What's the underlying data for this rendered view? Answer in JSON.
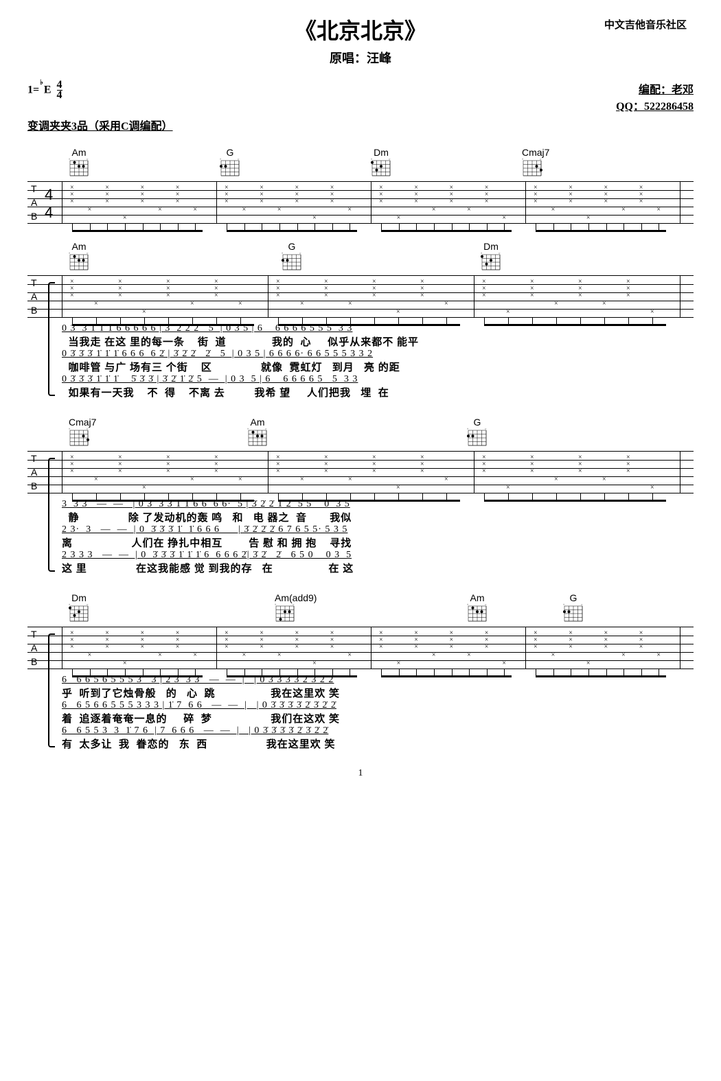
{
  "header": {
    "community": "中文吉他音乐社区",
    "title": "《北京北京》",
    "subtitle": "原唱：汪峰"
  },
  "meta": {
    "key": "1=",
    "key_note": "E",
    "time_sig": "4/4",
    "capo": "变调夹夹3品（采用C调编配）",
    "arranger": "编配：老邓",
    "qq": "QQ：522286458"
  },
  "chords": {
    "Am": "Am",
    "G": "G",
    "Dm": "Dm",
    "Cmaj7": "Cmaj7",
    "Amadd9": "Am(add9)"
  },
  "systems": [
    {
      "chords": [
        "Am",
        "G",
        "Dm",
        "Cmaj7"
      ],
      "chord_positions": [
        60,
        280,
        500,
        720
      ],
      "tab_label": {
        "T": "T",
        "A": "A",
        "B": "B",
        "time": "4"
      }
    },
    {
      "chords": [
        "Am",
        "G",
        "Dm"
      ],
      "chord_positions": [
        60,
        370,
        660
      ],
      "lyrics": [
        {
          "nums": "0 3̇  3̇ 1̇ 1̇ 1̇ 6 6 6 6 6 | 3̇  2̇ 2̇ 2̇   5  | 0 3 5 | 6    6 6 6 6 5 5 5  3 3",
          "text": "  当我走 在这 里的每一条    街  道              我的  心     似乎从来都不 能平"
        },
        {
          "nums": "0 3̇ 3̇ 3̇ 1̇ 1̇ 1̇ 6 6 6  6 2̇ | 3̇ 2̇ 2̇   2̇   5  | 0 3 5 | 6 6 6 6· 6 6 5 5 5 3 3 2",
          "text": "  咖啡管 与广 场有三 个街    区               就像  霓虹灯   到月   亮 的距"
        },
        {
          "nums": "0 3̇ 3̇ 3̇ 1̇ 1̇ 1̇    5̇ 3̇ 3̇ | 3̇ 2̇ 1̇ 2̇ 5  —  | 0 3  5 | 6    6 6 6 6 5   5  3 3",
          "text": "  如果有一天我    不  得    不离 去         我希 望     人们把我   埋  在"
        }
      ]
    },
    {
      "chords": [
        "Cmaj7",
        "Am",
        "G"
      ],
      "chord_positions": [
        60,
        320,
        640
      ],
      "lyrics": [
        {
          "nums": "3  3 3   —  —   | 0 3̇  3̇ 3̇ 1̇ 1̇ 6 6  6 6·  5 | 3̇ 2̇ 2̇ 1̇ 2̇  5 5    0  3 5",
          "text": "  静               除 了发动机的轰 鸣   和   电 器之  音       我似"
        },
        {
          "nums": "2 3·  3   —  —  | 0  3̇ 3̇ 3̇ 1̇  1̇ 6 6 6      | 3̇ 2̇ 2̇ 2̇ 6 7 6 5 5· 5 3 5",
          "text": "离                  人们在 挣扎中相互        告 慰 和 拥 抱    寻找"
        },
        {
          "nums": "2 3 3 3   —  —  | 0  3̇ 3̇ 3̇ 1̇ 1̇ 1̇ 6  6 6 6 2̇| 3̇ 2̇   2̇   6 5 0    0 3  5",
          "text": "这 里               在这我能感 觉 到我的存   在                 在 这"
        }
      ]
    },
    {
      "chords": [
        "Dm",
        "Am(add9)",
        "Am",
        "G"
      ],
      "chord_positions": [
        60,
        360,
        640,
        780
      ],
      "lyrics": [
        {
          "nums": "6   6 6 5 6 5 5 5 3   3 | 2 3  3 3   —  —  |   | 0 3̇ 3̇ 3̇ 3̇ 2̇ 3̇ 2̇ 2̇",
          "text": "乎  听到了它烛骨般   的   心  跳                 我在这里欢 笑"
        },
        {
          "nums": "6   6 5 6 6 5 5 5 3 3 3 | 1̇ 7  6 6   —  —  |   | 0 3̇ 3̇ 3̇ 3̇ 2̇ 3̇ 2̇ 2̇",
          "text": "着  追逐着奄奄一息的     碎  梦                  我们在这欢 笑"
        },
        {
          "nums": "6   6 5 5 3  3  1̇ 7 6  | 7  6 6 6   —  —  |   | 0 3̇ 3̇ 3̇ 3̇ 2̇ 3̇ 2̇ 2̇",
          "text": "有  太多让  我  眷恋的   东  西                  我在这里欢 笑"
        }
      ]
    }
  ],
  "page_num": "1"
}
